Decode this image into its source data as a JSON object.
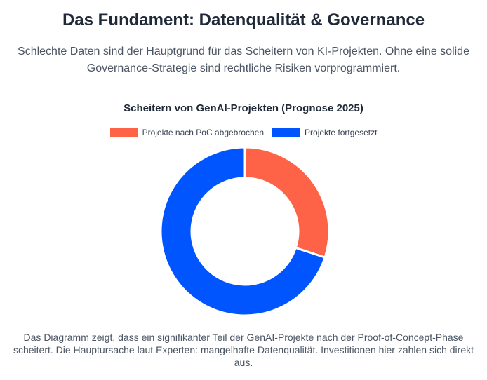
{
  "header": {
    "title": "Das Fundament: Datenqualität & Governance",
    "intro": "Schlechte Daten sind der Hauptgrund für das Scheitern von KI-Projekten. Ohne eine solide Governance-Strategie sind rechtliche Risiken vorprogrammiert."
  },
  "chart_data": {
    "type": "pie",
    "variant": "doughnut",
    "title": "Scheitern von GenAI-Projekten (Prognose 2025)",
    "categories": [
      "Projekte nach PoC abgebrochen",
      "Projekte fortgesetzt"
    ],
    "values": [
      30,
      70
    ],
    "colors": [
      "#ff6347",
      "#0055ff"
    ],
    "legend_position": "top",
    "border_color": "#ffffff"
  },
  "footer": {
    "caption": "Das Diagramm zeigt, dass ein signifikanter Teil der GenAI-Projekte nach der Proof-of-Concept-Phase scheitert. Die Hauptursache laut Experten: mangelhafte Datenqualität. Investitionen hier zahlen sich direkt aus."
  }
}
